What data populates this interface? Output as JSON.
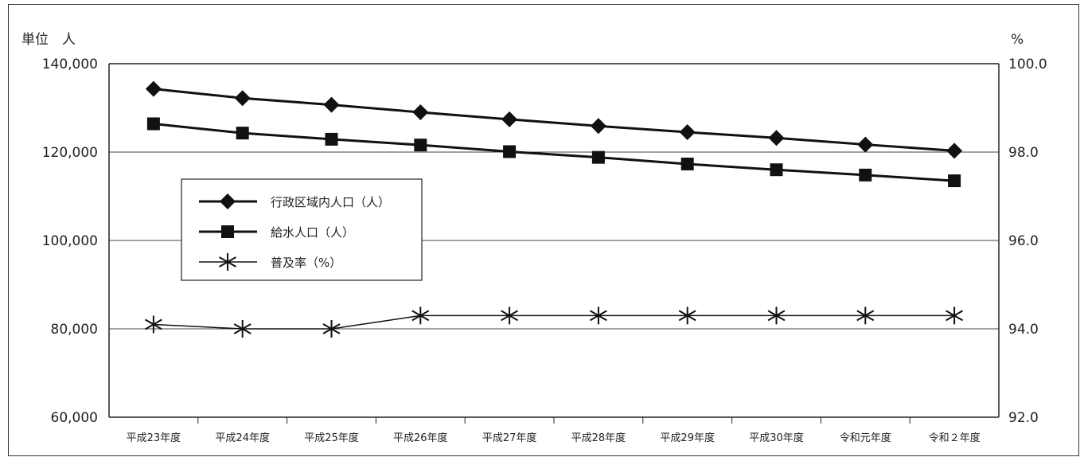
{
  "chart_data": {
    "type": "line",
    "left_unit_label": "単位　人",
    "right_unit_label": "%",
    "categories": [
      "平成23年度",
      "平成24年度",
      "平成25年度",
      "平成26年度",
      "平成27年度",
      "平成28年度",
      "平成29年度",
      "平成30年度",
      "令和元年度",
      "令和２年度"
    ],
    "y_left": {
      "min": 60000,
      "max": 140000,
      "ticks": [
        "60,000",
        "80,000",
        "100,000",
        "120,000",
        "140,000"
      ]
    },
    "y_right": {
      "min": 92.0,
      "max": 100.0,
      "ticks": [
        "92.0",
        "94.0",
        "96.0",
        "98.0",
        "100.0"
      ]
    },
    "grid": "horizontal",
    "legend_position": "upper-left inside plot",
    "series": [
      {
        "name": "行政区域内人口（人）",
        "axis": "left",
        "marker": "diamond",
        "values": [
          134300,
          132200,
          130700,
          129000,
          127400,
          125900,
          124500,
          123200,
          121700,
          120300
        ]
      },
      {
        "name": "給水人口（人）",
        "axis": "left",
        "marker": "square",
        "values": [
          126400,
          124300,
          122900,
          121600,
          120100,
          118800,
          117300,
          116000,
          114800,
          113500
        ]
      },
      {
        "name": "普及率（%）",
        "axis": "right",
        "marker": "asterisk",
        "values": [
          94.1,
          94.0,
          94.0,
          94.3,
          94.3,
          94.3,
          94.3,
          94.3,
          94.3,
          94.3
        ]
      }
    ]
  }
}
